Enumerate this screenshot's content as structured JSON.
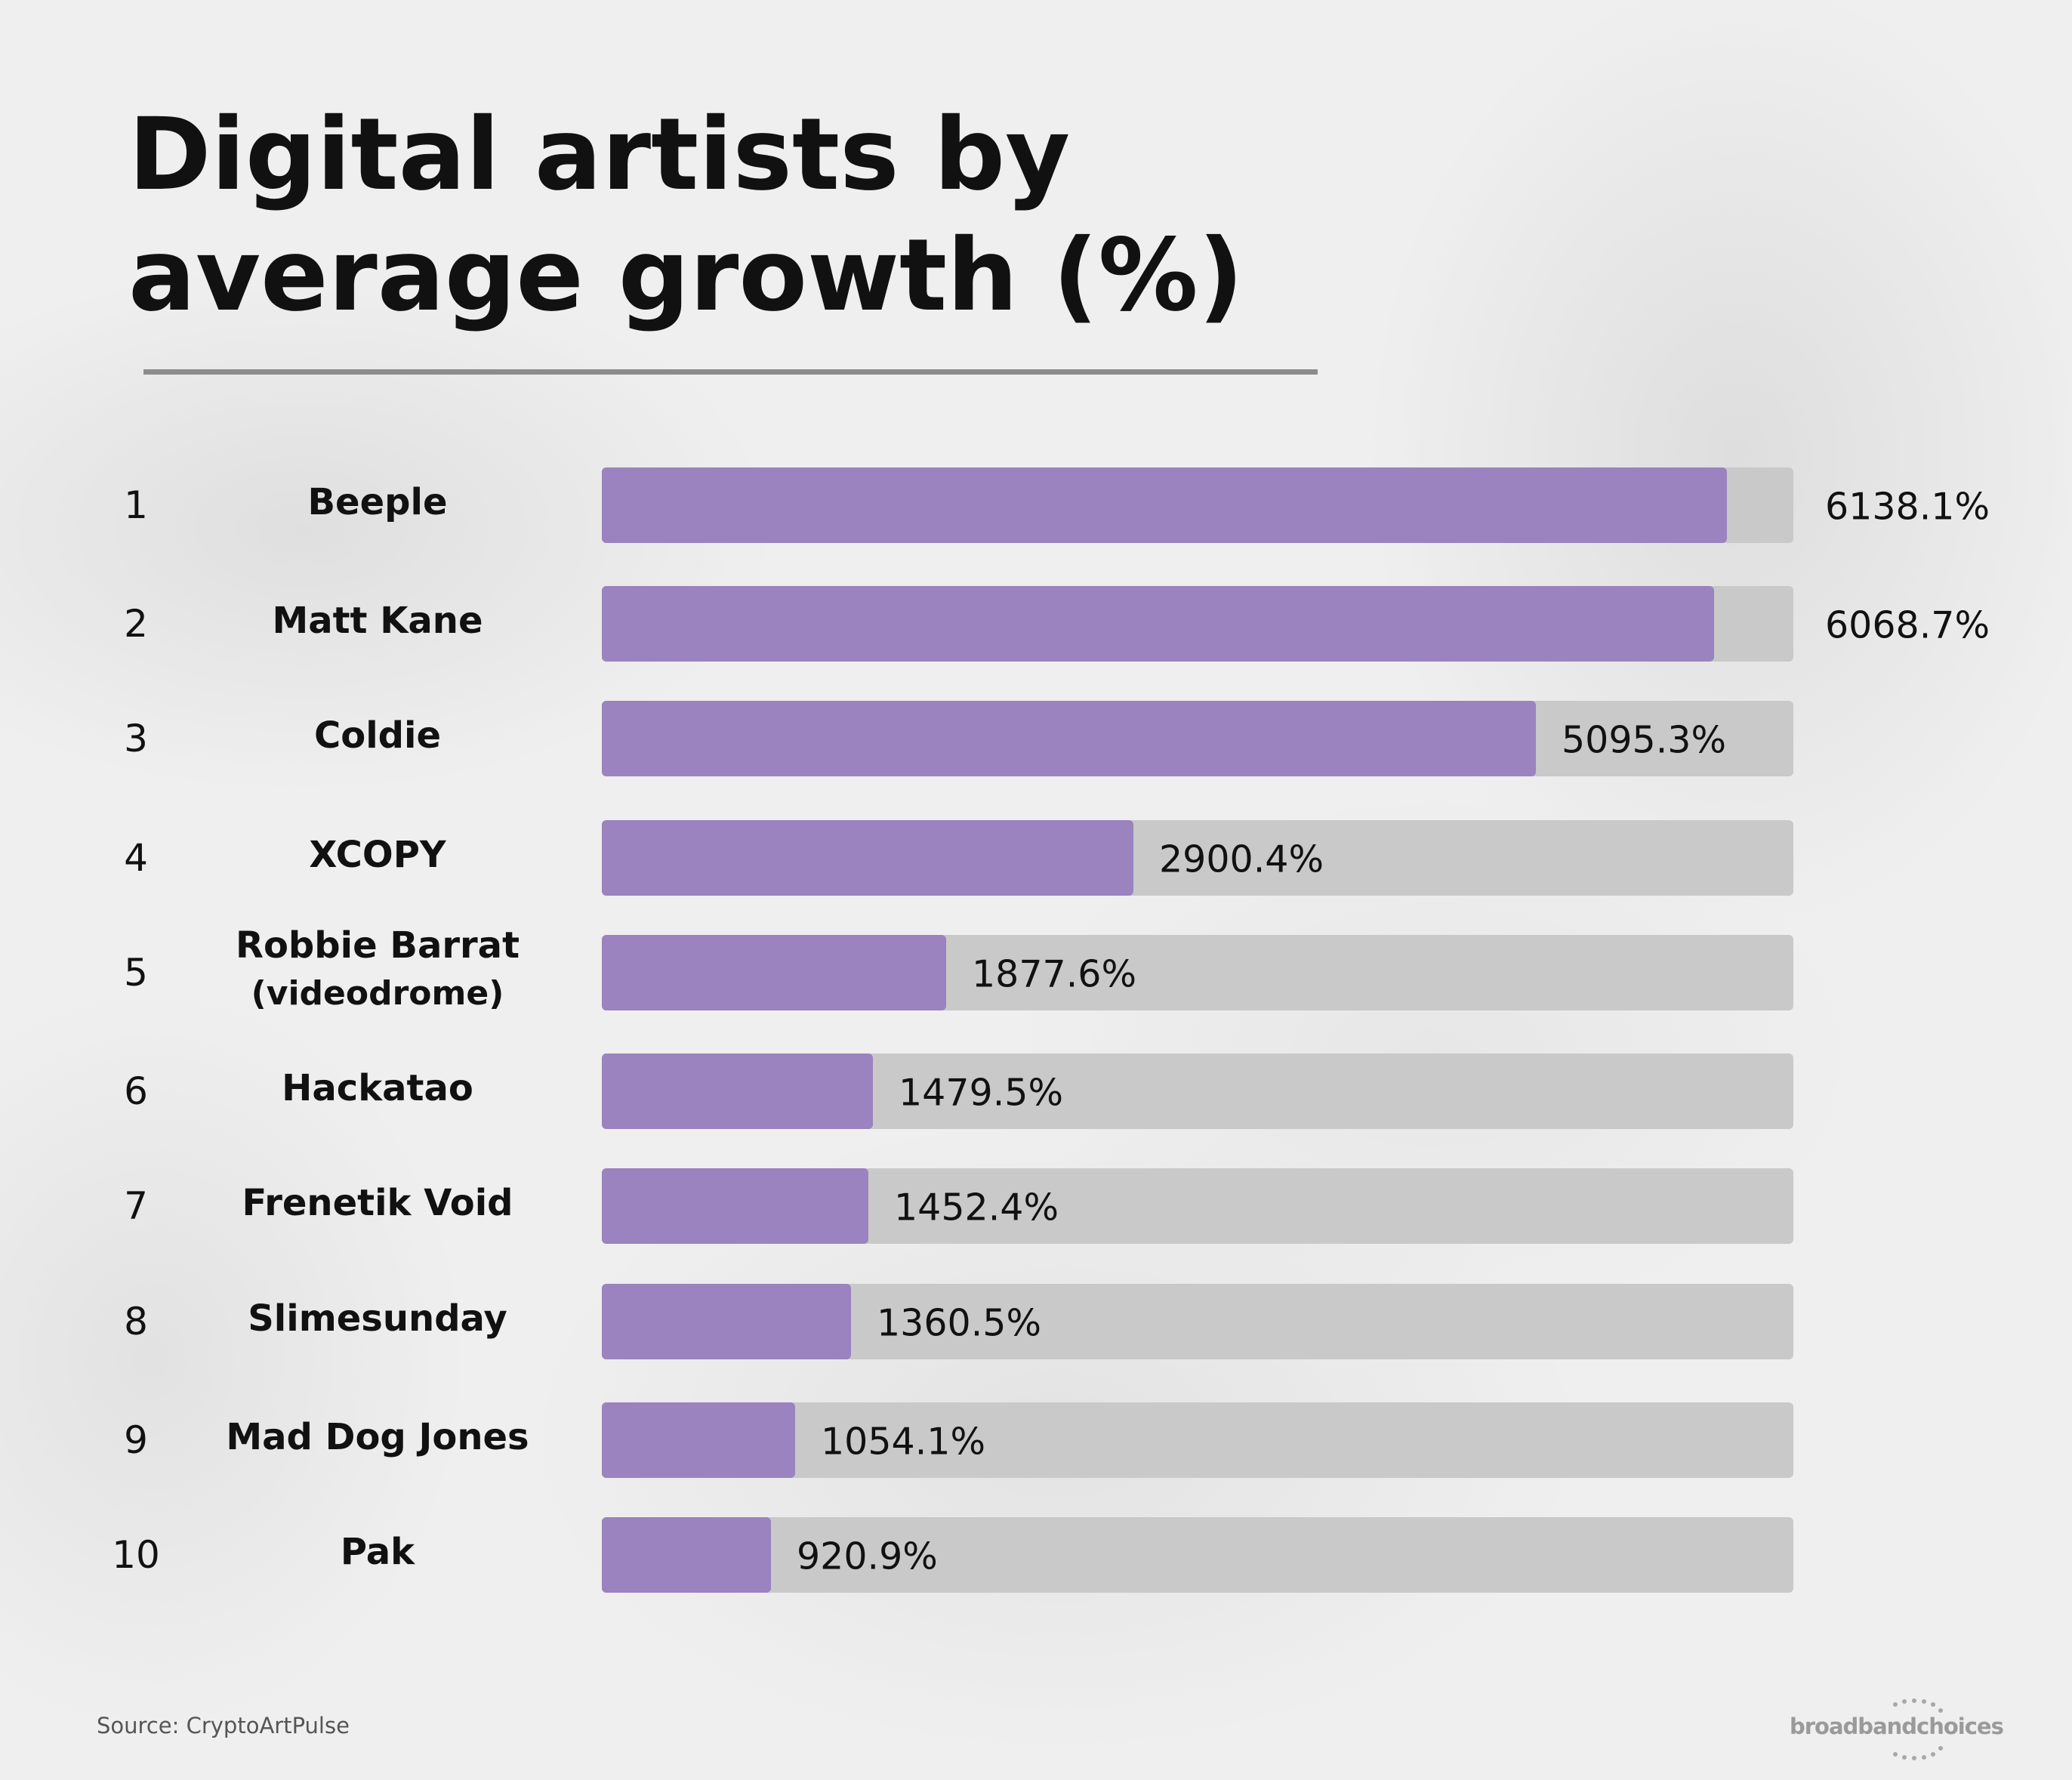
{
  "chart_data": {
    "type": "bar",
    "title": "Digital artists by average growth (%)",
    "ranks": [
      "1",
      "2",
      "3",
      "4",
      "5",
      "6",
      "7",
      "8",
      "9",
      "10"
    ],
    "categories": [
      "Beeple",
      "Matt Kane",
      "Coldie",
      "XCOPY",
      "Robbie Barrat (videodrome)",
      "Hackatao",
      "Frenetik Void",
      "Slimesunday",
      "Mad Dog Jones",
      "Pak"
    ],
    "category_lines": [
      [
        "Beeple"
      ],
      [
        "Matt Kane"
      ],
      [
        "Coldie"
      ],
      [
        "XCOPY"
      ],
      [
        "Robbie Barrat",
        "(videodrome)"
      ],
      [
        "Hackatao"
      ],
      [
        "Frenetik Void"
      ],
      [
        "Slimesunday"
      ],
      [
        "Mad Dog Jones"
      ],
      [
        "Pak"
      ]
    ],
    "values": [
      6138.1,
      6068.7,
      5095.3,
      2900.4,
      1877.6,
      1479.5,
      1452.4,
      1360.5,
      1054.1,
      920.9
    ],
    "value_labels": [
      "6138.1%",
      "6068.7%",
      "5095.3%",
      "2900.4%",
      "1877.6%",
      "1479.5%",
      "1452.4%",
      "1360.5%",
      "1054.1%",
      "920.9%"
    ],
    "xlim": [
      0,
      6500
    ],
    "bar_color": "#9a83bf",
    "track_color": "#c9c9c9",
    "grid": false,
    "legend": "none"
  },
  "footer": {
    "source": "Source: CryptoArtPulse",
    "logo_text": "broadbandchoices"
  }
}
